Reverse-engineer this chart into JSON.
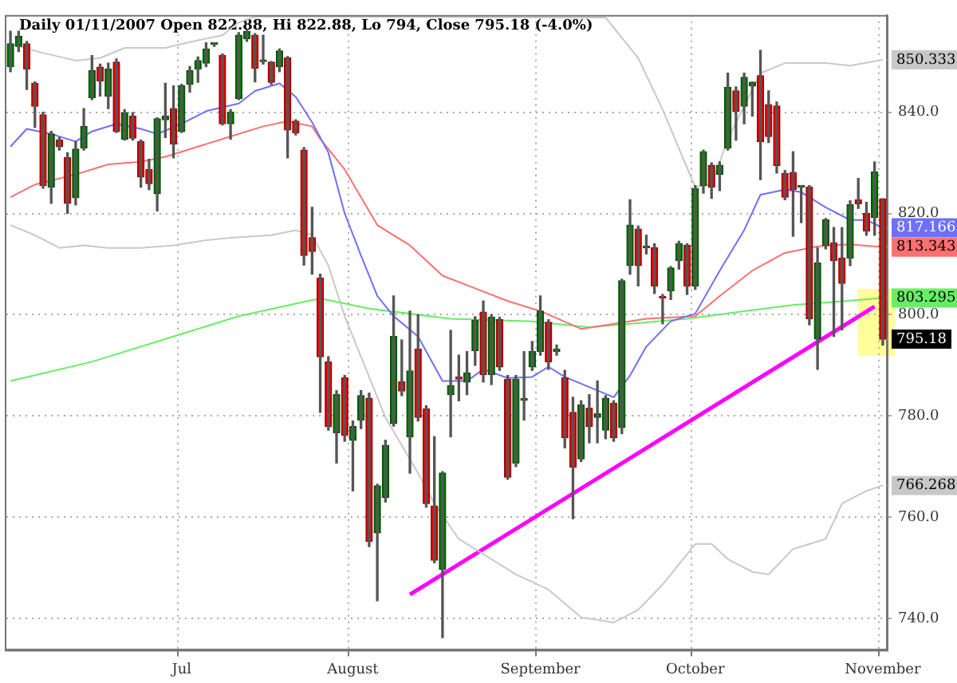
{
  "chart_data": {
    "type": "candlestick",
    "title": "Daily 01/11/2007 Open 822.88, Hi 822.88, Lo 794, Close 795.18 (-4.0%)",
    "categories": [
      null,
      null,
      null,
      null,
      null,
      null,
      null,
      null,
      null,
      null,
      null,
      null,
      null,
      null,
      null,
      null,
      null,
      null,
      null,
      null,
      null,
      "Jul",
      null,
      null,
      null,
      null,
      null,
      null,
      null,
      null,
      null,
      null,
      null,
      null,
      null,
      null,
      null,
      null,
      null,
      null,
      null,
      null,
      "August",
      null,
      null,
      null,
      null,
      null,
      null,
      null,
      null,
      null,
      null,
      null,
      null,
      null,
      null,
      null,
      null,
      null,
      null,
      null,
      null,
      null,
      null,
      "September",
      null,
      null,
      null,
      null,
      null,
      null,
      null,
      null,
      null,
      null,
      null,
      null,
      null,
      null,
      null,
      null,
      null,
      null,
      "October",
      null,
      null,
      null,
      null,
      null,
      null,
      null,
      null,
      null,
      null,
      null,
      null,
      null,
      null,
      null,
      null,
      null,
      null,
      null,
      null,
      null,
      null,
      "November"
    ],
    "ohlc": [
      [
        849,
        856,
        848,
        853.5
      ],
      [
        853,
        856,
        852,
        855
      ],
      [
        853.5,
        854,
        844.5,
        848.5
      ],
      [
        845.7,
        846,
        837,
        841.2
      ],
      [
        839.5,
        840,
        825,
        825.5
      ],
      [
        825.2,
        836.2,
        822,
        835.7
      ],
      [
        834.5,
        835,
        832.5,
        833.2
      ],
      [
        831,
        832,
        820,
        822
      ],
      [
        823.1,
        834.2,
        821.7,
        832.7
      ],
      [
        832.9,
        840.7,
        832.5,
        837.2
      ],
      [
        842.9,
        851.2,
        842.5,
        848.2
      ],
      [
        848.9,
        849.5,
        843.2,
        846.2
      ],
      [
        843.2,
        849.7,
        840.7,
        848.5
      ],
      [
        849.9,
        850.5,
        836,
        836.2
      ],
      [
        834.7,
        840.5,
        834.5,
        839.9
      ],
      [
        839.2,
        839.9,
        834.5,
        834.9
      ],
      [
        834.2,
        834.5,
        825.2,
        827.2
      ],
      [
        828.7,
        830.7,
        824.7,
        825.9
      ],
      [
        823.9,
        838.9,
        820.5,
        838.7
      ],
      [
        838.5,
        845.7,
        835,
        839.2
      ],
      [
        840.7,
        845.2,
        831,
        833.7
      ],
      [
        836.2,
        845.5,
        836,
        845.2
      ],
      [
        845.5,
        849,
        844,
        848.2
      ],
      [
        848.5,
        850.9,
        845.9,
        850.2
      ],
      [
        849.7,
        853.7,
        849,
        852.5
      ],
      [
        853.4,
        853.7,
        853,
        853.5
      ],
      [
        851.2,
        851.5,
        837.5,
        837.7
      ],
      [
        837.7,
        840.5,
        834.7,
        840
      ],
      [
        842.7,
        855.7,
        842.5,
        855.2
      ],
      [
        854.5,
        856.2,
        854,
        855.9
      ],
      [
        855.2,
        855.5,
        846,
        848.7
      ],
      [
        850,
        855.2,
        849.5,
        850.1
      ],
      [
        849.9,
        850,
        845.5,
        845.9
      ],
      [
        849,
        852.5,
        848,
        852.1
      ],
      [
        850.7,
        851,
        831,
        836.5
      ],
      [
        838.2,
        838.5,
        835.5,
        835.9
      ],
      [
        832.5,
        833,
        809.8,
        811.7
      ],
      [
        815.2,
        821.2,
        808,
        812.5
      ],
      [
        807.2,
        808,
        780.7,
        791.7
      ],
      [
        790.7,
        791.7,
        777.2,
        777.9
      ],
      [
        776.7,
        785,
        770.7,
        784.2
      ],
      [
        787.5,
        788,
        775,
        776.2
      ],
      [
        775.2,
        779,
        765.2,
        777.9
      ],
      [
        779.2,
        785,
        777.5,
        784
      ],
      [
        783.5,
        784.5,
        754.2,
        755.2
      ],
      [
        756.9,
        766.5,
        743.5,
        766.2
      ],
      [
        763.9,
        775.2,
        763,
        774.2
      ],
      [
        778.5,
        803.7,
        778,
        795.7
      ],
      [
        786.7,
        795,
        784,
        784.9
      ],
      [
        775.9,
        800.7,
        768.7,
        788.9
      ],
      [
        793.2,
        800,
        779,
        779.7
      ],
      [
        781.4,
        782,
        762,
        762.7
      ],
      [
        762.2,
        775.9,
        751,
        751.5
      ],
      [
        749.7,
        769,
        736.2,
        768.7
      ],
      [
        784.2,
        796.9,
        775.9,
        786
      ],
      [
        787.7,
        792,
        783,
        787.3
      ],
      [
        786.7,
        792.7,
        784.2,
        788.5
      ],
      [
        792.9,
        799.6,
        790,
        798.9
      ],
      [
        800.5,
        802.7,
        786.7,
        788.2
      ],
      [
        788.2,
        800,
        786.2,
        799.5
      ],
      [
        799,
        799.5,
        789,
        789.7
      ],
      [
        787.2,
        788,
        767.5,
        767.9
      ],
      [
        770.7,
        788,
        770,
        787.2
      ],
      [
        783.1,
        792.7,
        779.2,
        783.3
      ],
      [
        789.7,
        794.7,
        789,
        792.7
      ],
      [
        792.7,
        803.7,
        792,
        800.7
      ],
      [
        798.5,
        799,
        789.2,
        790.7
      ],
      [
        792.7,
        794,
        792,
        793.2
      ],
      [
        787.5,
        789,
        773.7,
        775.7
      ],
      [
        780.7,
        783.7,
        759.7,
        769.9
      ],
      [
        771.5,
        783,
        771,
        782.2
      ],
      [
        781.5,
        784.2,
        774.7,
        777.9
      ],
      [
        779.7,
        786.9,
        774.7,
        780.4
      ],
      [
        777.2,
        784,
        775.5,
        783.5
      ],
      [
        782.5,
        783,
        775,
        775.7
      ],
      [
        777.7,
        807,
        776.5,
        806.7
      ],
      [
        809.7,
        822.7,
        808,
        817.7
      ],
      [
        816.9,
        817.5,
        805.7,
        809.7
      ],
      [
        813.2,
        815.7,
        812,
        813.5
      ],
      [
        813.2,
        814,
        804.2,
        805.7
      ],
      [
        803.6,
        804,
        798.2,
        803.3
      ],
      [
        804.7,
        809.5,
        803,
        809.2
      ],
      [
        810.7,
        814.5,
        809,
        814
      ],
      [
        813.7,
        814,
        804,
        805.7
      ],
      [
        805.7,
        825.5,
        805,
        824.9
      ],
      [
        825.5,
        832.5,
        824,
        832.2
      ],
      [
        829.5,
        830,
        823,
        825.2
      ],
      [
        827.7,
        830.2,
        824.5,
        829.5
      ],
      [
        832.9,
        847.7,
        832.5,
        844.9
      ],
      [
        844.2,
        845,
        834.5,
        840.2
      ],
      [
        841.2,
        847.7,
        837.7,
        846.9
      ],
      [
        845.2,
        846,
        839.2,
        845.9
      ],
      [
        847.2,
        852.2,
        826.7,
        834.2
      ],
      [
        841.5,
        844.2,
        834,
        835.2
      ],
      [
        841.2,
        842,
        828,
        829.5
      ],
      [
        827.9,
        828.5,
        822.7,
        823.2
      ],
      [
        828.1,
        832.2,
        815.5,
        824.7
      ],
      [
        825.2,
        825.5,
        818.2,
        825.3
      ],
      [
        825.2,
        825.5,
        798,
        799.2
      ],
      [
        795.2,
        813.2,
        789.2,
        810.2
      ],
      [
        813.7,
        819,
        813,
        818.7
      ],
      [
        814.2,
        817.2,
        795.7,
        810.7
      ],
      [
        811.2,
        817.2,
        797,
        806.2
      ],
      [
        811.2,
        822.5,
        809.7,
        821.7
      ],
      [
        822.7,
        826.9,
        821,
        821.9
      ],
      [
        820,
        822.2,
        815.7,
        816.5
      ],
      [
        819.2,
        830.2,
        815.7,
        828.2
      ],
      [
        822.88,
        822.88,
        794,
        795.18
      ]
    ],
    "series": [
      {
        "type": "line",
        "color": "#c8c8c8",
        "values": [
          853.5,
          null,
          null,
          null,
          851.7,
          null,
          null,
          null,
          850.2,
          null,
          null,
          850.7,
          null,
          null,
          852.7,
          null,
          null,
          null,
          null,
          852.7,
          null,
          null,
          null,
          854.2,
          null,
          null,
          855.2,
          null,
          857.7,
          null,
          858.9,
          null,
          null,
          null,
          null,
          null,
          null,
          null,
          null,
          null,
          null,
          null,
          null,
          null,
          null,
          null,
          null,
          null,
          null,
          null,
          null,
          null,
          null,
          null,
          null,
          null,
          null,
          null,
          null,
          null,
          null,
          null,
          null,
          null,
          null,
          null,
          null,
          null,
          null,
          null,
          null,
          null,
          null,
          858.7,
          null,
          null,
          null,
          850.7,
          null,
          null,
          840.5,
          null,
          null,
          null,
          825.2,
          null,
          825.7,
          null,
          834.7,
          null,
          null,
          null,
          847.7,
          null,
          null,
          849.7,
          null,
          null,
          null,
          null,
          849.7,
          null,
          null,
          849.2,
          null,
          null,
          null,
          850.333
        ]
      },
      {
        "type": "line",
        "color": "#6f6fff",
        "values": [
          833.2,
          null,
          836.7,
          null,
          null,
          835.7,
          null,
          null,
          834.2,
          null,
          836.2,
          null,
          null,
          837.7,
          null,
          null,
          836.7,
          null,
          835.7,
          null,
          null,
          837.7,
          null,
          null,
          840.2,
          null,
          null,
          null,
          841.7,
          null,
          844.2,
          null,
          null,
          845.7,
          null,
          843,
          null,
          838,
          null,
          832,
          null,
          820,
          null,
          811.7,
          null,
          803.7,
          null,
          799.7,
          null,
          null,
          795.7,
          null,
          null,
          786.9,
          null,
          null,
          786.9,
          null,
          789.2,
          null,
          null,
          787.5,
          null,
          null,
          787.7,
          null,
          789.7,
          null,
          787.7,
          null,
          null,
          785.7,
          null,
          null,
          783.7,
          null,
          788,
          null,
          793.7,
          null,
          null,
          798.7,
          null,
          null,
          800.2,
          null,
          null,
          808.7,
          null,
          null,
          816.7,
          null,
          823.7,
          null,
          null,
          824.7,
          null,
          824.2,
          null,
          null,
          821.2,
          null,
          null,
          818.7,
          null,
          818.7,
          null,
          817.166
        ]
      },
      {
        "type": "line",
        "color": "#ff7070",
        "values": [
          823.2,
          null,
          null,
          825.7,
          null,
          null,
          null,
          null,
          827.7,
          null,
          null,
          null,
          829.7,
          null,
          null,
          null,
          830.2,
          null,
          null,
          831.2,
          null,
          null,
          null,
          833.2,
          null,
          null,
          null,
          835.2,
          null,
          null,
          null,
          837.2,
          null,
          null,
          838.2,
          null,
          null,
          837.2,
          834.7,
          null,
          null,
          828.7,
          null,
          null,
          null,
          817.7,
          null,
          null,
          null,
          813.7,
          null,
          null,
          null,
          807.7,
          null,
          null,
          null,
          805.2,
          null,
          null,
          null,
          802.7,
          null,
          null,
          null,
          800.7,
          null,
          null,
          null,
          null,
          797.2,
          null,
          null,
          null,
          null,
          null,
          null,
          null,
          799.2,
          null,
          null,
          null,
          null,
          null,
          799.7,
          null,
          null,
          803.7,
          null,
          null,
          null,
          808.7,
          null,
          null,
          null,
          812.2,
          null,
          null,
          null,
          813.5,
          null,
          null,
          null,
          813.9,
          null,
          null,
          null,
          813.343
        ]
      },
      {
        "type": "line",
        "color": "#66ee66",
        "values": [
          786.9,
          null,
          null,
          null,
          null,
          null,
          null,
          null,
          null,
          null,
          790.7,
          null,
          null,
          null,
          null,
          null,
          null,
          null,
          null,
          null,
          null,
          796.2,
          null,
          null,
          null,
          null,
          null,
          null,
          799.7,
          null,
          null,
          null,
          null,
          null,
          null,
          802.2,
          null,
          null,
          803.2,
          null,
          null,
          null,
          null,
          null,
          801.2,
          null,
          null,
          null,
          null,
          null,
          null,
          null,
          null,
          null,
          799.2,
          null,
          null,
          null,
          null,
          null,
          null,
          null,
          null,
          null,
          798.7,
          null,
          null,
          null,
          null,
          null,
          null,
          797.5,
          null,
          null,
          null,
          null,
          null,
          null,
          null,
          null,
          null,
          null,
          null,
          799.2,
          null,
          null,
          null,
          null,
          null,
          null,
          800.7,
          null,
          null,
          null,
          null,
          null,
          801.9,
          null,
          null,
          null,
          null,
          null,
          null,
          null,
          null,
          null,
          null,
          803.295
        ]
      },
      {
        "type": "line",
        "color": "#c8c8c8",
        "values": [
          817.7,
          null,
          null,
          815.7,
          null,
          null,
          813.2,
          null,
          null,
          813.7,
          null,
          null,
          813.2,
          null,
          null,
          null,
          813.2,
          null,
          null,
          null,
          813.7,
          null,
          null,
          null,
          814.7,
          null,
          null,
          815.2,
          null,
          null,
          null,
          null,
          815.7,
          null,
          null,
          816.7,
          null,
          815.7,
          null,
          809.7,
          null,
          799.7,
          null,
          791.7,
          null,
          null,
          779.7,
          null,
          null,
          null,
          768.7,
          null,
          762.7,
          null,
          null,
          755.7,
          null,
          null,
          752.7,
          null,
          null,
          null,
          748.7,
          null,
          null,
          null,
          745.7,
          null,
          null,
          null,
          740.2,
          null,
          null,
          null,
          739.2,
          null,
          null,
          741.7,
          null,
          null,
          746.7,
          null,
          null,
          null,
          754.7,
          null,
          754.7,
          null,
          751.7,
          null,
          null,
          749.2,
          null,
          748.7,
          null,
          null,
          753.7,
          null,
          null,
          null,
          755.7,
          null,
          762.7,
          null,
          null,
          765.2,
          null,
          766.268
        ]
      },
      {
        "type": "line",
        "color": "#ff00ff",
        "values": [
          null,
          null,
          null,
          null,
          null,
          null,
          null,
          null,
          null,
          null,
          null,
          null,
          null,
          null,
          null,
          null,
          null,
          null,
          null,
          null,
          null,
          null,
          null,
          null,
          null,
          null,
          null,
          null,
          null,
          null,
          null,
          null,
          null,
          null,
          null,
          null,
          null,
          null,
          null,
          null,
          null,
          null,
          null,
          null,
          null,
          null,
          null,
          null,
          null,
          744.7,
          null,
          null,
          null,
          null,
          null,
          null,
          null,
          null,
          null,
          null,
          null,
          null,
          null,
          null,
          null,
          null,
          null,
          null,
          null,
          null,
          null,
          null,
          null,
          null,
          null,
          null,
          null,
          null,
          null,
          null,
          null,
          null,
          null,
          null,
          null,
          null,
          null,
          null,
          null,
          null,
          null,
          null,
          null,
          null,
          null,
          null,
          null,
          null,
          null,
          null,
          null,
          null,
          null,
          null,
          null,
          null,
          801.6,
          null
        ]
      }
    ],
    "annotations": [
      {
        "text": "850.333",
        "x": "November",
        "y": 850.333
      },
      {
        "text": "817.166",
        "x": "November",
        "y": 817.166
      },
      {
        "text": "813.343",
        "x": "November",
        "y": 813.343
      },
      {
        "text": "803.295",
        "x": "November",
        "y": 803.295
      },
      {
        "text": "795.18",
        "x": "November",
        "y": 795.18
      },
      {
        "text": "766.268",
        "x": "November",
        "y": 766.268
      }
    ],
    "ylim": [
      733.8,
      859.2
    ],
    "yticks": [
      {
        "value": 740,
        "label": "740.0"
      },
      {
        "value": 760,
        "label": "760.0"
      },
      {
        "value": 780,
        "label": "780.0"
      },
      {
        "value": 800,
        "label": "800.0"
      },
      {
        "value": 820,
        "label": "820.0"
      },
      {
        "value": 840,
        "label": "840.0"
      }
    ],
    "grid": true
  }
}
